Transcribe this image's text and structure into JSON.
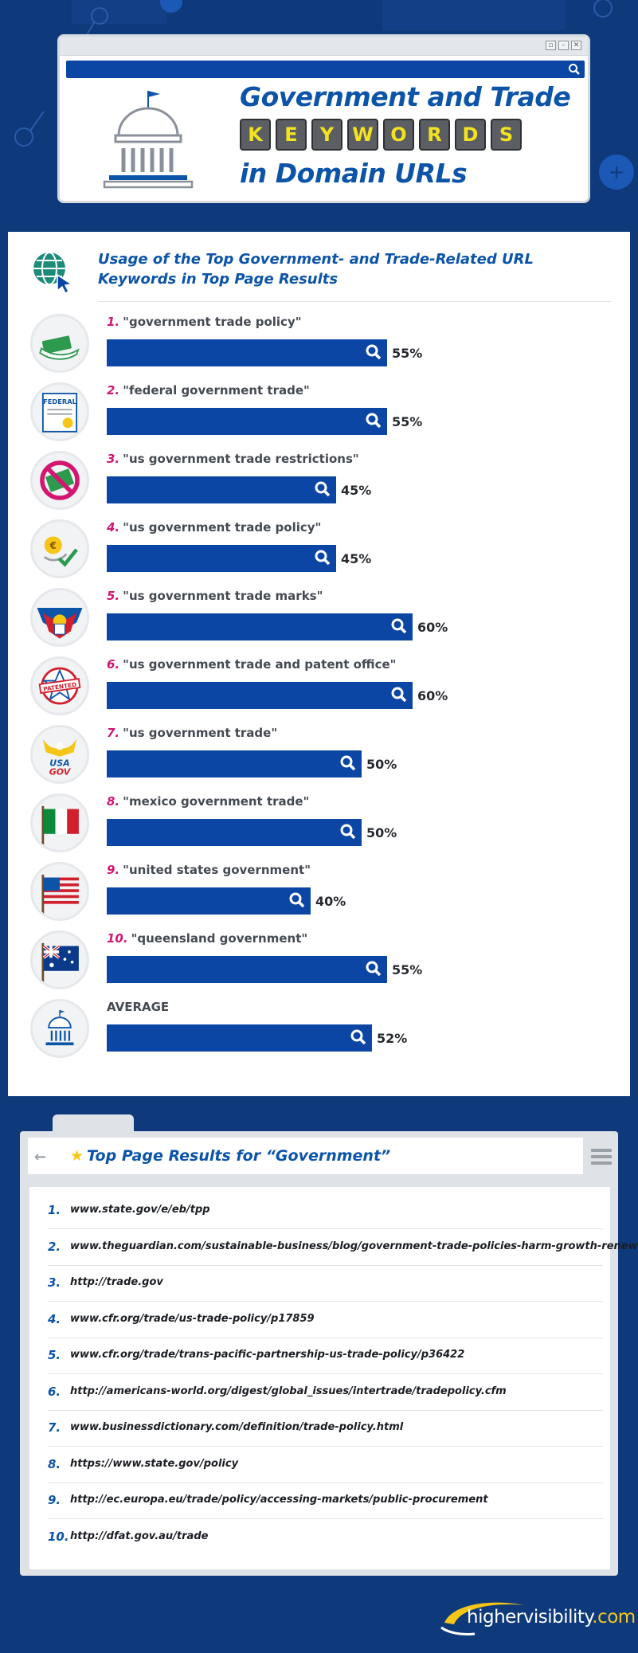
{
  "header": {
    "title_line1": "Government and Trade",
    "keyword_letters": [
      "K",
      "E",
      "Y",
      "W",
      "O",
      "R",
      "D",
      "S"
    ],
    "title_line3": "in Domain URLs"
  },
  "chart_section": {
    "title": "Usage of the Top Government- and Trade-Related URL Keywords in Top Page Results"
  },
  "chart_data": {
    "type": "bar",
    "orientation": "horizontal",
    "title": "Usage of the Top Government- and Trade-Related URL Keywords in Top Page Results",
    "categories": [
      "\"government trade policy\"",
      "\"federal government trade\"",
      "\"us government trade restrictions\"",
      "\"us government trade policy\"",
      "\"us government trade marks\"",
      "\"us government trade and patent office\"",
      "\"us government trade\"",
      "\"mexico government trade\"",
      "\"united states government\"",
      "\"queensland government\"",
      "AVERAGE"
    ],
    "ranks": [
      "1.",
      "2.",
      "3.",
      "4.",
      "5.",
      "6.",
      "7.",
      "8.",
      "9.",
      "10.",
      ""
    ],
    "values": [
      55,
      55,
      45,
      45,
      60,
      60,
      50,
      50,
      40,
      55,
      52
    ],
    "value_labels": [
      "55%",
      "55%",
      "45%",
      "45%",
      "60%",
      "60%",
      "50%",
      "50%",
      "40%",
      "55%",
      "52%"
    ],
    "xlim": [
      0,
      100
    ],
    "unit": "%",
    "bar_color": "#0b46a5"
  },
  "results": {
    "title": "Top Page Results for “Government”",
    "items": [
      {
        "num": "1.",
        "url": "www.state.gov/e/eb/tpp"
      },
      {
        "num": "2.",
        "url": "www.theguardian.com/sustainable-business/blog/government-trade-policies-harm-growth-renewables"
      },
      {
        "num": "3.",
        "url": "http://trade.gov"
      },
      {
        "num": "4.",
        "url": "www.cfr.org/trade/us-trade-policy/p17859"
      },
      {
        "num": "5.",
        "url": "www.cfr.org/trade/trans-pacific-partnership-us-trade-policy/p36422"
      },
      {
        "num": "6.",
        "url": "http://americans-world.org/digest/global_issues/intertrade/tradepolicy.cfm"
      },
      {
        "num": "7.",
        "url": "www.businessdictionary.com/definition/trade-policy.html"
      },
      {
        "num": "8.",
        "url": "https://www.state.gov/policy"
      },
      {
        "num": "9.",
        "url": "http://ec.europa.eu/trade/policy/accessing-markets/public-procurement"
      },
      {
        "num": "10.",
        "url": "http://dfat.gov.au/trade"
      }
    ]
  },
  "logo": {
    "text_main": "highervisibility",
    "text_suffix": ".com"
  },
  "row_icons": [
    "money-hand-icon",
    "federal-document-icon",
    "no-money-icon",
    "euro-hand-icon",
    "eagle-shield-icon",
    "patented-stamp-icon",
    "usa-gov-eagle-icon",
    "mexico-flag-icon",
    "usa-flag-icon",
    "australia-flag-icon",
    "capitol-building-icon"
  ]
}
